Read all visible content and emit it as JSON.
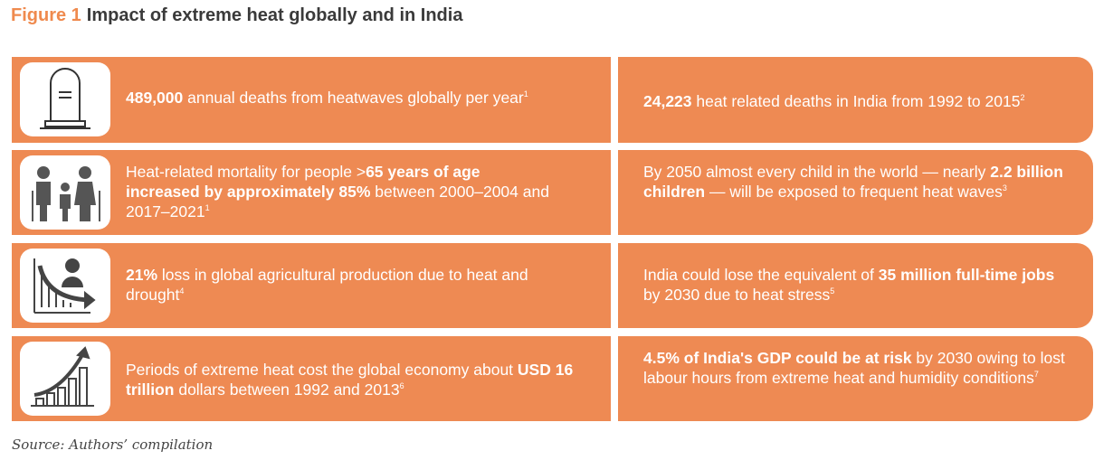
{
  "title": {
    "figure": "Figure 1",
    "text": "Impact of extreme heat globally and in India"
  },
  "rows": [
    {
      "left": {
        "icon": "gravestone-icon",
        "bold": "489,000",
        "text": " annual deaths from heatwaves globally per year",
        "sup": "1"
      },
      "right": {
        "bold": "24,223",
        "text": " heat related deaths in India from 1992 to 2015",
        "sup": "2"
      }
    },
    {
      "left": {
        "icon": "family-icon",
        "pre": "Heat-related mortality for people >",
        "bold1": "65 years of age",
        "bold2": "increased by approximately 85%",
        "text": " between 2000–2004 and 2017–2021",
        "sup": "1"
      },
      "right": {
        "pre": "By 2050 almost every child in the world — nearly ",
        "bold": "2.2 billion children",
        "text": " — will be exposed to frequent heat waves",
        "sup": "3"
      }
    },
    {
      "left": {
        "icon": "declining-production-icon",
        "bold": "21%",
        "text": " loss in global agricultural production due to heat and drought",
        "sup": "4"
      },
      "right": {
        "pre": "India could lose the equivalent of ",
        "bold": "35 million full-time jobs",
        "text": " by 2030 due to heat stress",
        "sup": "5"
      }
    },
    {
      "left": {
        "icon": "rising-cost-chart-icon",
        "pre": "Periods of extreme heat cost the global economy about ",
        "bold": "USD 16 trillion",
        "text": " dollars between 1992 and 2013",
        "sup": "6"
      },
      "right": {
        "bold": "4.5% of India's GDP could be at risk",
        "text": " by 2030 owing to lost labour hours from extreme heat and humidity conditions",
        "sup": "7"
      }
    }
  ],
  "source": "Source: Authors’ compilation",
  "colors": {
    "card": "#ee8a53",
    "accent": "#ef8a4e",
    "title": "#3a3a3a"
  }
}
